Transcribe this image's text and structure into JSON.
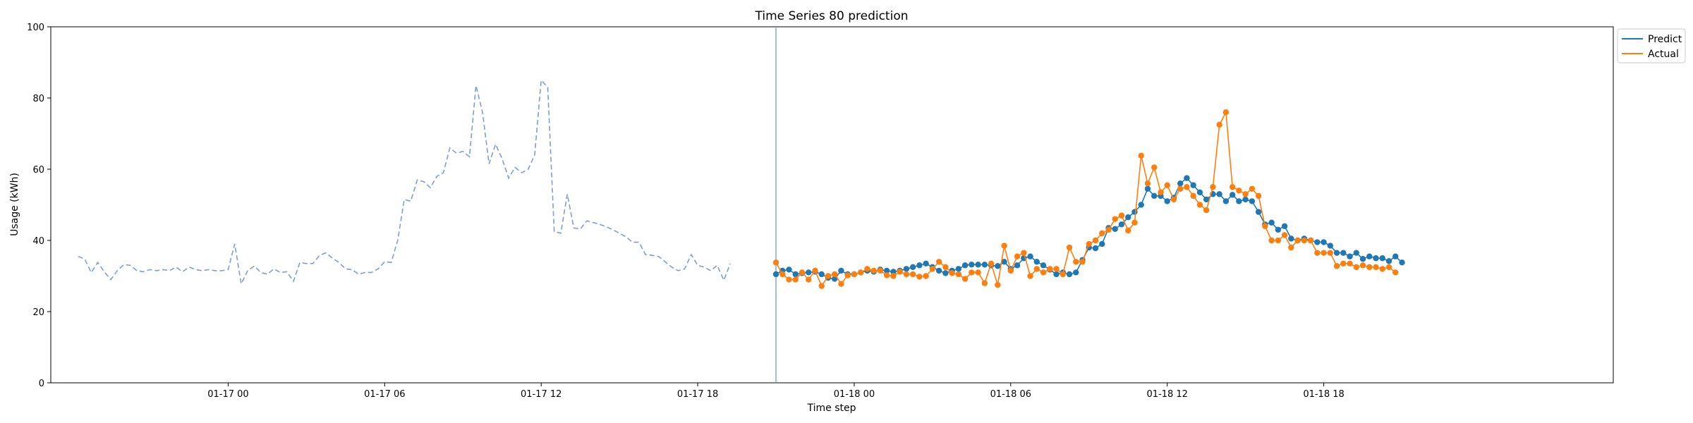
{
  "chart_data": {
    "type": "line",
    "title": "Time Series 80 prediction",
    "xlabel": "Time step",
    "ylabel": "Usage (kWh)",
    "ylim": [
      0,
      100
    ],
    "yticks": [
      0,
      20,
      40,
      60,
      80,
      100
    ],
    "xlim": [
      "2024-01-16 17:12",
      "2024-01-19 05:06"
    ],
    "xticks": [
      {
        "t": "2024-01-17 00:00",
        "label": "01-17 00"
      },
      {
        "t": "2024-01-17 06:00",
        "label": "01-17 06"
      },
      {
        "t": "2024-01-17 12:00",
        "label": "01-17 12"
      },
      {
        "t": "2024-01-17 18:00",
        "label": "01-17 18"
      },
      {
        "t": "2024-01-18 00:00",
        "label": "01-18 00"
      },
      {
        "t": "2024-01-18 06:00",
        "label": "01-18 06"
      },
      {
        "t": "2024-01-18 12:00",
        "label": "01-18 12"
      },
      {
        "t": "2024-01-18 18:00",
        "label": "01-18 18"
      }
    ],
    "grid": false,
    "legend_placement": "outside top-right",
    "split_time": "2024-01-17 21:00",
    "history": {
      "color": "#7c9fd0",
      "style": "dashed",
      "start": "2024-01-16 18:15",
      "step_minutes": 15,
      "values": [
        35.5,
        34.8,
        31.0,
        33.8,
        31.2,
        29.0,
        31.5,
        33.2,
        33.0,
        31.5,
        31.2,
        31.8,
        31.5,
        31.8,
        31.5,
        32.5,
        31.2,
        32.5,
        31.8,
        31.5,
        31.8,
        31.5,
        31.5,
        31.8,
        39.0,
        27.8,
        31.5,
        32.8,
        31.0,
        30.5,
        32.0,
        31.0,
        31.2,
        28.5,
        33.8,
        33.5,
        33.5,
        35.8,
        36.5,
        35.0,
        33.8,
        32.0,
        31.8,
        30.5,
        31.0,
        31.0,
        32.0,
        34.0,
        33.8,
        40.0,
        51.5,
        51.0,
        57.0,
        56.5,
        54.8,
        58.0,
        59.0,
        66.0,
        64.5,
        65.0,
        63.5,
        83.5,
        76.0,
        61.5,
        67.0,
        63.0,
        57.5,
        60.5,
        59.0,
        60.0,
        64.0,
        85.0,
        83.0,
        42.5,
        42.0,
        53.0,
        43.5,
        43.2,
        45.5,
        45.0,
        44.5,
        43.8,
        43.0,
        42.0,
        41.0,
        39.5,
        39.5,
        36.0,
        35.8,
        35.5,
        34.0,
        32.5,
        31.5,
        32.0,
        36.0,
        33.0,
        32.5,
        31.5,
        33.0,
        28.8,
        33.5
      ]
    },
    "series": [
      {
        "name": "Predict",
        "color": "#1f77b4",
        "start": "2024-01-17 21:00",
        "step_minutes": 15,
        "values": [
          30.5,
          31.5,
          31.8,
          30.5,
          30.8,
          31.0,
          31.2,
          30.5,
          29.5,
          29.2,
          31.5,
          30.5,
          30.5,
          31.0,
          31.5,
          31.2,
          31.8,
          31.5,
          31.2,
          31.5,
          32.0,
          32.5,
          33.0,
          33.5,
          32.5,
          31.5,
          30.8,
          31.5,
          32.0,
          33.0,
          33.2,
          33.2,
          33.2,
          33.0,
          32.8,
          34.0,
          32.0,
          33.0,
          35.0,
          35.5,
          34.0,
          33.0,
          31.8,
          30.5,
          31.0,
          30.5,
          31.0,
          34.5,
          38.0,
          37.8,
          39.0,
          43.5,
          43.2,
          44.5,
          46.5,
          48.0,
          50.0,
          54.5,
          52.5,
          52.5,
          51.0,
          52.0,
          56.0,
          57.5,
          55.5,
          53.5,
          51.5,
          53.0,
          53.0,
          51.0,
          52.8,
          51.0,
          51.5,
          51.0,
          48.0,
          44.5,
          45.0,
          43.0,
          44.0,
          40.5,
          40.0,
          40.5,
          40.0,
          39.5,
          39.5,
          38.5,
          36.5,
          36.5,
          35.5,
          36.5,
          34.8,
          35.5,
          35.0,
          35.0,
          34.2,
          35.5,
          33.8
        ]
      },
      {
        "name": "Actual",
        "color": "#ff7f0e",
        "start": "2024-01-17 21:00",
        "step_minutes": 15,
        "values": [
          33.8,
          30.5,
          29.0,
          29.0,
          31.0,
          29.0,
          31.5,
          27.2,
          30.0,
          30.5,
          27.8,
          30.2,
          30.5,
          31.0,
          32.0,
          31.5,
          31.5,
          30.2,
          30.0,
          31.2,
          30.5,
          30.5,
          29.8,
          30.0,
          32.0,
          34.0,
          32.5,
          30.8,
          30.5,
          29.2,
          31.0,
          31.0,
          28.0,
          33.5,
          27.5,
          38.5,
          31.5,
          35.5,
          36.5,
          30.0,
          32.0,
          31.0,
          32.0,
          32.0,
          30.5,
          38.0,
          34.0,
          34.0,
          39.0,
          40.0,
          42.0,
          43.0,
          46.0,
          47.0,
          42.8,
          45.0,
          63.8,
          56.0,
          60.5,
          53.5,
          55.5,
          51.5,
          54.5,
          55.0,
          52.5,
          50.0,
          48.5,
          55.0,
          72.5,
          76.0,
          55.0,
          54.0,
          53.0,
          54.5,
          52.5,
          44.0,
          40.0,
          40.0,
          41.5,
          38.0,
          40.0,
          40.0,
          40.0,
          36.5,
          36.5,
          36.5,
          32.8,
          33.5,
          33.5,
          32.5,
          33.0,
          32.5,
          32.5,
          32.0,
          32.5,
          31.0
        ]
      }
    ]
  }
}
